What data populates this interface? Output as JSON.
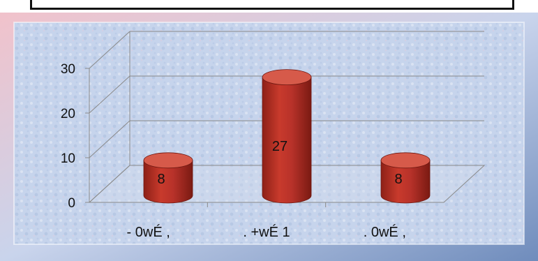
{
  "chart_data": {
    "type": "bar",
    "categories": [
      "- 0wÉ ,",
      ". +wÉ 1",
      ". 0wÉ ,"
    ],
    "values": [
      8,
      27,
      8
    ],
    "data_labels": [
      "8",
      "27",
      "8"
    ],
    "y_ticks": [
      "0",
      "10",
      "20",
      "30"
    ],
    "ylim": [
      0,
      30
    ],
    "bar_style": "3d-cylinder",
    "grid": true,
    "legend": "none",
    "colors": {
      "bar": "#b83226",
      "bar_light": "#d65a4a",
      "bar_dark": "#7e1b12",
      "frame_light": "#e9b7c0",
      "frame_dark": "#6a86b6",
      "background": "#c9d7ee"
    }
  }
}
